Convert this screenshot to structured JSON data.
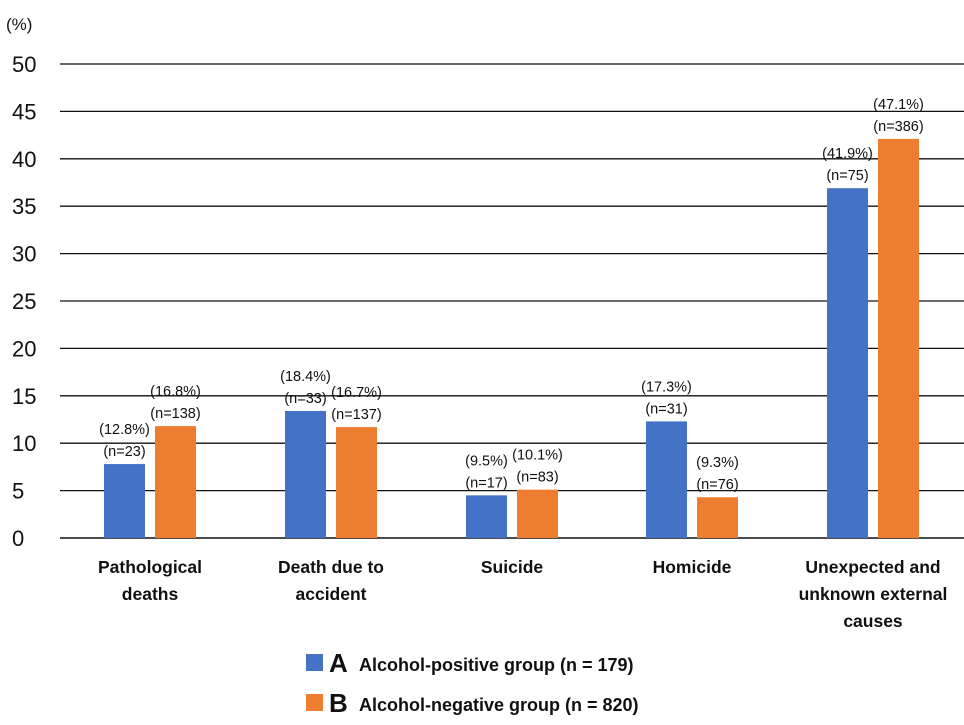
{
  "chart_data": {
    "type": "bar",
    "unit_label": "(%)",
    "categories": [
      [
        "Pathological",
        "deaths"
      ],
      [
        "Death due to",
        "accident"
      ],
      [
        "Suicide"
      ],
      [
        "Homicide"
      ],
      [
        "Unexpected and",
        "unknown external",
        "causes"
      ]
    ],
    "y_ticks": [
      "0",
      "5",
      "10",
      "15",
      "20",
      "25",
      "30",
      "35",
      "40",
      "45",
      "50"
    ],
    "ylim": [
      0,
      50
    ],
    "grid": true,
    "legend_position": "bottom",
    "series": [
      {
        "letter": "A",
        "name": "Alcohol-positive group (n = 179)",
        "color": "#4472C4",
        "values": [
          12.8,
          18.4,
          9.5,
          17.3,
          41.9
        ],
        "labels": [
          [
            "(12.8%)",
            "(n=23)"
          ],
          [
            "(18.4%)",
            "(n=33)"
          ],
          [
            "(9.5%)",
            "(n=17)"
          ],
          [
            "(17.3%)",
            "(n=31)"
          ],
          [
            "(41.9%)",
            "(n=75)"
          ]
        ]
      },
      {
        "letter": "B",
        "name": "Alcohol-negative group (n = 820)",
        "color": "#ED7D31",
        "values": [
          16.8,
          16.7,
          10.1,
          9.3,
          47.1
        ],
        "labels": [
          [
            "(16.8%)",
            "(n=138)"
          ],
          [
            "(16.7%)",
            "(n=137)"
          ],
          [
            "(10.1%)",
            "(n=83)"
          ],
          [
            "(9.3%)",
            "(n=76)"
          ],
          [
            "(47.1%)",
            "(n=386)"
          ]
        ]
      }
    ]
  }
}
